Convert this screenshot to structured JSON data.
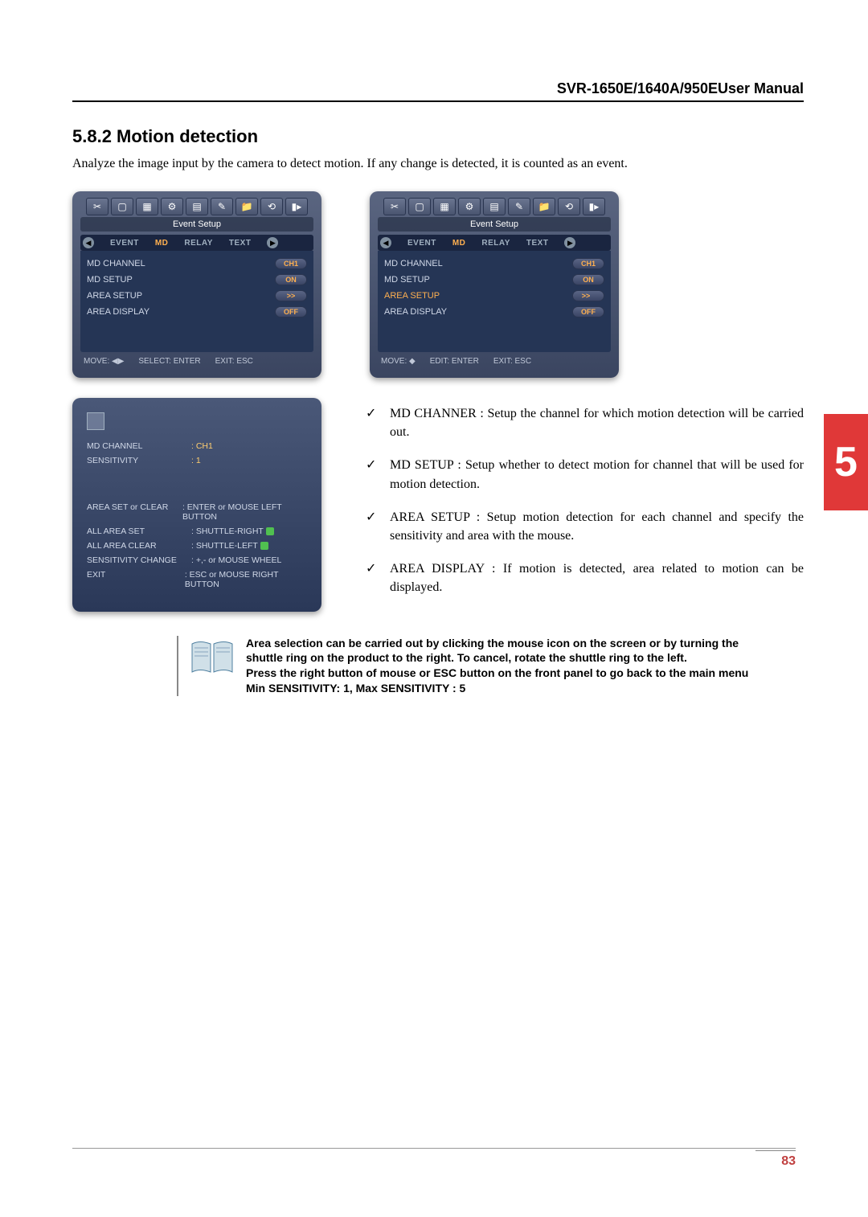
{
  "header": {
    "title": "SVR-1650E/1640A/950EUser Manual"
  },
  "section": {
    "heading": "5.8.2 Motion detection"
  },
  "intro": "Analyze the image input by the camera to detect motion. If any change is detected, it is counted as an event.",
  "chapter_tab": "5",
  "page_number": "83",
  "panel_common": {
    "title": "Event Setup",
    "tabs": {
      "event": "EVENT",
      "md": "MD",
      "relay": "RELAY",
      "text": "TEXT"
    },
    "toolbar_icons": [
      "✂",
      "▢",
      "▦",
      "⚙",
      "▤",
      "✎",
      "📁",
      "⟲",
      "▮▸"
    ],
    "footer_move_lr": "MOVE: ◀▶",
    "footer_move_ud": "MOVE: ◆",
    "footer_select": "SELECT: ENTER",
    "footer_edit": "EDIT: ENTER",
    "footer_exit": "EXIT: ESC"
  },
  "panel1_rows": [
    {
      "label": "MD CHANNEL",
      "value": "CH1"
    },
    {
      "label": "MD SETUP",
      "value": "ON"
    },
    {
      "label": "AREA SETUP",
      "value": ">>"
    },
    {
      "label": "AREA DISPLAY",
      "value": "OFF"
    }
  ],
  "panel2_rows": [
    {
      "label": "MD CHANNEL",
      "value": "CH1"
    },
    {
      "label": "MD SETUP",
      "value": "ON"
    },
    {
      "label": "AREA SETUP",
      "value": ">>",
      "highlighted": true,
      "cursor": true
    },
    {
      "label": "AREA DISPLAY",
      "value": "OFF"
    }
  ],
  "area_panel": {
    "top": {
      "md_channel_label": "MD CHANNEL",
      "md_channel_value": ":  CH1",
      "sensitivity_label": "SENSITIVITY",
      "sensitivity_value": ":  1"
    },
    "lines": [
      {
        "label": "AREA SET or CLEAR",
        "value": ": ENTER or MOUSE LEFT BUTTON"
      },
      {
        "label": "ALL AREA SET",
        "value": ": SHUTTLE-RIGHT",
        "shuttle": true
      },
      {
        "label": "ALL AREA CLEAR",
        "value": ": SHUTTLE-LEFT",
        "shuttle": true
      },
      {
        "label": "SENSITIVITY CHANGE",
        "value": ": +,- or MOUSE WHEEL"
      },
      {
        "label": "EXIT",
        "value": ": ESC or MOUSE RIGHT BUTTON"
      }
    ]
  },
  "bullets": [
    "MD CHANNER : Setup the channel for which motion detection will be carried out.",
    "MD SETUP : Setup whether to detect motion for channel that will be used for motion detection.",
    "AREA SETUP : Setup motion detection for each channel and specify the sensitivity and area with the mouse.",
    "AREA DISPLAY : If motion is detected, area related to motion can be displayed."
  ],
  "note": {
    "line1": "Area selection can be carried out by clicking the mouse icon on the screen or by turning the shuttle ring on the product to the right. To cancel, rotate the shuttle ring to the left.",
    "line2": "Press the right button of mouse or ESC button on the front panel to go back to the main menu",
    "line3": "Min SENSITIVITY: 1, Max SENSITIVITY : 5"
  },
  "colors": {
    "panel_bg_top": "#5a6580",
    "panel_bg_bottom": "#3a4560",
    "highlight": "#ffb050",
    "chapter_red": "#e03838",
    "page_red": "#c04040"
  }
}
